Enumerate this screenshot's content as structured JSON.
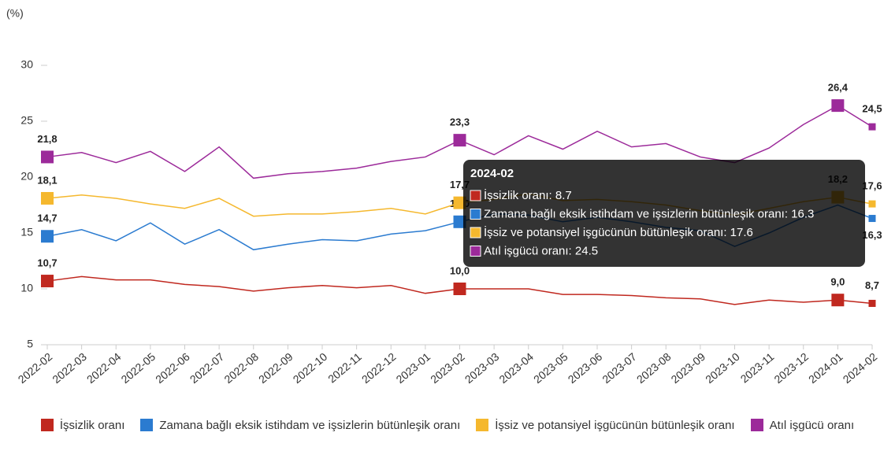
{
  "chart_data": {
    "type": "line",
    "y_axis_label": "(%)",
    "categories": [
      "2022-02",
      "2022-03",
      "2022-04",
      "2022-05",
      "2022-06",
      "2022-07",
      "2022-08",
      "2022-09",
      "2022-10",
      "2022-11",
      "2022-12",
      "2023-01",
      "2023-02",
      "2023-03",
      "2023-04",
      "2023-05",
      "2023-06",
      "2023-07",
      "2023-08",
      "2023-09",
      "2023-10",
      "2023-11",
      "2023-12",
      "2024-01",
      "2024-02"
    ],
    "ylim": [
      5,
      30
    ],
    "yticks": [
      5,
      10,
      15,
      20,
      25,
      30
    ],
    "grid": false,
    "legend": "bottom",
    "series": [
      {
        "name": "İşsizlik oranı",
        "color": "#c0281f",
        "values": [
          10.7,
          11.1,
          10.8,
          10.8,
          10.4,
          10.2,
          9.8,
          10.1,
          10.3,
          10.1,
          10.3,
          9.6,
          10.0,
          10.0,
          10.0,
          9.5,
          9.5,
          9.4,
          9.2,
          9.1,
          8.6,
          9.0,
          8.8,
          9.0,
          8.7
        ],
        "value_labels": [
          "10,7",
          null,
          null,
          null,
          null,
          null,
          null,
          null,
          null,
          null,
          null,
          null,
          "10,0",
          null,
          null,
          null,
          null,
          null,
          null,
          null,
          null,
          null,
          null,
          "9,0",
          "8,7"
        ]
      },
      {
        "name": "Zamana bağlı eksik istihdam ve işsizlerin bütünleşik oranı",
        "color": "#2b7bd0",
        "values": [
          14.7,
          15.3,
          14.3,
          15.9,
          14.0,
          15.3,
          13.5,
          14.0,
          14.4,
          14.3,
          14.9,
          15.2,
          16.0,
          16.7,
          16.6,
          16.0,
          16.4,
          16.0,
          15.5,
          15.2,
          13.8,
          15.0,
          16.4,
          17.5,
          16.3
        ],
        "value_labels": [
          "14,7",
          null,
          null,
          null,
          null,
          null,
          null,
          null,
          null,
          null,
          null,
          null,
          "16,0",
          null,
          null,
          null,
          null,
          null,
          null,
          null,
          null,
          null,
          null,
          null,
          "16,3"
        ]
      },
      {
        "name": "İşsiz ve potansiyel işgücünün bütünleşik oranı",
        "color": "#f5b82e",
        "values": [
          18.1,
          18.4,
          18.1,
          17.6,
          17.2,
          18.1,
          16.5,
          16.7,
          16.7,
          16.9,
          17.2,
          16.7,
          17.7,
          18.0,
          18.5,
          17.9,
          18.0,
          17.8,
          17.5,
          17.0,
          16.6,
          17.2,
          17.8,
          18.2,
          17.6
        ],
        "value_labels": [
          "18,1",
          null,
          null,
          null,
          null,
          null,
          null,
          null,
          null,
          null,
          null,
          null,
          "17,7",
          null,
          null,
          null,
          null,
          null,
          null,
          null,
          null,
          null,
          null,
          "18,2",
          "17,6"
        ]
      },
      {
        "name": "Atıl işgücü oranı",
        "color": "#9c2a9a",
        "values": [
          21.8,
          22.2,
          21.3,
          22.3,
          20.5,
          22.7,
          19.9,
          20.3,
          20.5,
          20.8,
          21.4,
          21.8,
          23.3,
          22.0,
          23.7,
          22.5,
          24.1,
          22.7,
          23.0,
          21.8,
          21.3,
          22.6,
          24.7,
          26.4,
          24.5
        ],
        "value_labels": [
          "21,8",
          null,
          null,
          null,
          null,
          null,
          null,
          null,
          null,
          null,
          null,
          null,
          "23,3",
          null,
          null,
          null,
          null,
          null,
          null,
          null,
          null,
          null,
          null,
          "26,4",
          "24,5"
        ]
      }
    ],
    "tooltip": {
      "title": "2024-02",
      "items": [
        "İşsizlik oranı: 8.7",
        "Zamana bağlı eksik istihdam ve işsizlerin bütünleşik oranı: 16.3",
        "İşsiz ve potansiyel işgücünün bütünleşik oranı: 17.6",
        "Atıl işgücü oranı: 24.5"
      ]
    }
  }
}
